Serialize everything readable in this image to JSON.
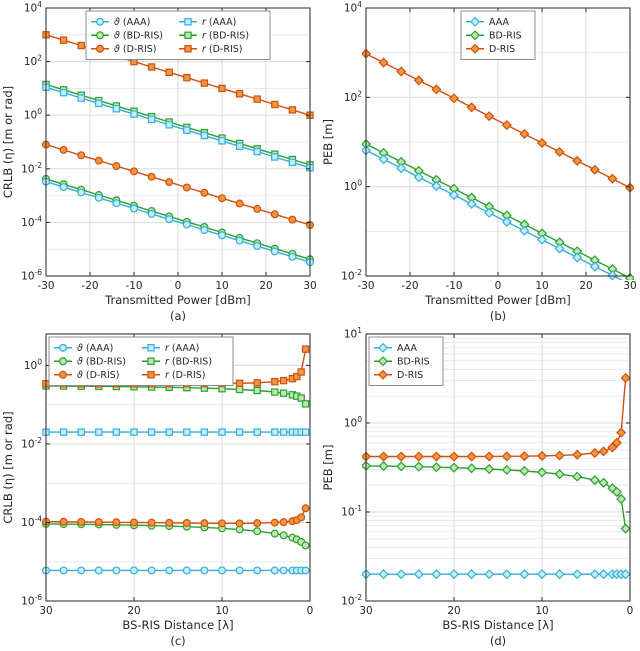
{
  "figure": {
    "background": "#ffffff",
    "palette": {
      "AAA": {
        "stroke": "#35aede",
        "fill": "#c6ecfa"
      },
      "BD-RIS": {
        "stroke": "#2aa12e",
        "fill": "#bfe6b2"
      },
      "D-RIS": {
        "stroke": "#d2500f",
        "fill": "#f0963f"
      }
    },
    "grid": {
      "major": "#dbdbdb",
      "minor": "#e9e9e9",
      "axis": "#262626",
      "text": "#262626",
      "legend_border": "#8c8c8c"
    }
  },
  "chart_data": [
    {
      "id": "a",
      "type": "line",
      "caption": "(a)",
      "xlabel": "Transmitted Power [dBm]",
      "ylabel": "CRLB (η) [m or rad]",
      "xlim": [
        -30,
        30
      ],
      "x_reversed": false,
      "xticks": [
        -30,
        -20,
        -10,
        0,
        10,
        20,
        30
      ],
      "ylog": true,
      "ylim_exp": [
        -6,
        4
      ],
      "ytick_exps": [
        -6,
        -4,
        -2,
        0,
        2,
        4
      ],
      "legend": {
        "position": "top-center",
        "columns": 2,
        "order": [
          "ϑ (AAA)",
          "ϑ (BD-RIS)",
          "ϑ (D-RIS)",
          "r (AAA)",
          "r (BD-RIS)",
          "r (D-RIS)"
        ]
      },
      "x": [
        -30,
        -26,
        -22,
        -18,
        -14,
        -10,
        -6,
        -2,
        2,
        6,
        10,
        14,
        18,
        22,
        26,
        30
      ],
      "series": [
        {
          "name": "ϑ (BD-RIS)",
          "color": "BD-RIS",
          "marker": "circle",
          "values": [
            0.0042,
            0.00265,
            0.00167,
            0.00105,
            0.00067,
            0.00042,
            0.000265,
            0.000167,
            0.000105,
            6.7e-05,
            4.2e-05,
            2.65e-05,
            1.67e-05,
            1.05e-05,
            6.7e-06,
            4.2e-06
          ]
        },
        {
          "name": "ϑ (AAA)",
          "color": "AAA",
          "marker": "circle",
          "values": [
            0.0033,
            0.00208,
            0.00131,
            0.00083,
            0.00052,
            0.00033,
            0.000208,
            0.000131,
            8.3e-05,
            5.2e-05,
            3.3e-05,
            2.08e-05,
            1.31e-05,
            8.3e-06,
            5.2e-06,
            3.3e-06
          ]
        },
        {
          "name": "ϑ (D-RIS)",
          "color": "D-RIS",
          "marker": "circle",
          "values": [
            0.08,
            0.0505,
            0.0319,
            0.0201,
            0.0127,
            0.008,
            0.00505,
            0.00319,
            0.00201,
            0.00127,
            0.0008,
            0.000505,
            0.000319,
            0.000201,
            0.000127,
            8e-05
          ]
        },
        {
          "name": "r (BD-RIS)",
          "color": "BD-RIS",
          "marker": "square",
          "values": [
            14,
            8.83,
            5.57,
            3.52,
            2.22,
            1.4,
            0.883,
            0.557,
            0.352,
            0.222,
            0.14,
            0.0883,
            0.0557,
            0.0352,
            0.0222,
            0.014
          ]
        },
        {
          "name": "r (AAA)",
          "color": "AAA",
          "marker": "square",
          "values": [
            11,
            6.94,
            4.38,
            2.76,
            1.74,
            1.1,
            0.694,
            0.438,
            0.276,
            0.174,
            0.11,
            0.0694,
            0.0438,
            0.0276,
            0.0174,
            0.011
          ]
        },
        {
          "name": "r (D-RIS)",
          "color": "D-RIS",
          "marker": "square",
          "values": [
            1000,
            631,
            398,
            251,
            158,
            100,
            63.1,
            39.8,
            25.1,
            15.8,
            10,
            6.31,
            3.98,
            2.51,
            1.58,
            1.0
          ]
        }
      ]
    },
    {
      "id": "b",
      "type": "line",
      "caption": "(b)",
      "xlabel": "Transmitted Power [dBm]",
      "ylabel": "PEB [m]",
      "xlim": [
        -30,
        30
      ],
      "x_reversed": false,
      "xticks": [
        -30,
        -20,
        -10,
        0,
        10,
        20,
        30
      ],
      "ylog": true,
      "ylim_exp": [
        -2,
        4
      ],
      "ytick_exps": [
        -2,
        0,
        2,
        4
      ],
      "legend": {
        "position": "top-center",
        "columns": 1,
        "order": [
          "AAA",
          "BD-RIS",
          "D-RIS"
        ]
      },
      "x": [
        -30,
        -26,
        -22,
        -18,
        -14,
        -10,
        -6,
        -2,
        2,
        6,
        10,
        14,
        18,
        22,
        26,
        30
      ],
      "series": [
        {
          "name": "BD-RIS",
          "color": "BD-RIS",
          "marker": "diamond",
          "values": [
            9.0,
            5.68,
            3.58,
            2.26,
            1.43,
            0.9,
            0.568,
            0.358,
            0.226,
            0.143,
            0.09,
            0.0568,
            0.0358,
            0.0226,
            0.0143,
            0.009
          ]
        },
        {
          "name": "AAA",
          "color": "AAA",
          "marker": "diamond",
          "values": [
            6.5,
            4.1,
            2.59,
            1.63,
            1.03,
            0.65,
            0.41,
            0.259,
            0.163,
            0.103,
            0.065,
            0.041,
            0.0259,
            0.0163,
            0.0103,
            0.0065
          ]
        },
        {
          "name": "D-RIS",
          "color": "D-RIS",
          "marker": "diamond",
          "values": [
            950,
            599,
            378,
            239,
            151,
            95,
            59.9,
            37.8,
            23.9,
            15.1,
            9.5,
            5.99,
            3.78,
            2.39,
            1.51,
            0.95
          ]
        }
      ]
    },
    {
      "id": "c",
      "type": "line",
      "caption": "(c)",
      "xlabel": "BS-RIS Distance [λ]",
      "ylabel": "CRLB (η) [m or rad]",
      "xlim": [
        0,
        30
      ],
      "x_reversed": true,
      "xticks": [
        30,
        20,
        10,
        0
      ],
      "ylog": true,
      "ylim_exp": [
        -6,
        0.8
      ],
      "ytick_exps": [
        -6,
        -4,
        -2,
        0
      ],
      "legend": {
        "position": "top-left",
        "columns": 2,
        "order": [
          "ϑ (AAA)",
          "ϑ (BD-RIS)",
          "ϑ (D-RIS)",
          "r (AAA)",
          "r (BD-RIS)",
          "r (D-RIS)"
        ]
      },
      "x": [
        30,
        28,
        26,
        24,
        22,
        20,
        18,
        16,
        14,
        12,
        10,
        8,
        6,
        4,
        3,
        2,
        1.5,
        1,
        0.5
      ],
      "series": [
        {
          "name": "ϑ (BD-RIS)",
          "color": "BD-RIS",
          "marker": "circle",
          "values": [
            9.2e-05,
            9.1e-05,
            9e-05,
            8.9e-05,
            8.7e-05,
            8.5e-05,
            8.3e-05,
            8.1e-05,
            7.8e-05,
            7.5e-05,
            7.1e-05,
            6.6e-05,
            6e-05,
            5.2e-05,
            4.7e-05,
            4.1e-05,
            3.7e-05,
            3.2e-05,
            2.6e-05
          ]
        },
        {
          "name": "ϑ (AAA)",
          "color": "AAA",
          "marker": "circle",
          "values": [
            6e-06,
            6e-06,
            6e-06,
            6e-06,
            6e-06,
            6e-06,
            6e-06,
            6e-06,
            6e-06,
            6e-06,
            6e-06,
            6e-06,
            6e-06,
            6e-06,
            6e-06,
            6e-06,
            6e-06,
            6e-06,
            6e-06
          ]
        },
        {
          "name": "ϑ (D-RIS)",
          "color": "D-RIS",
          "marker": "circle",
          "values": [
            0.000105,
            0.000104,
            0.000103,
            0.000102,
            0.000101,
            0.0001,
            9.9e-05,
            9.8e-05,
            9.7e-05,
            9.6e-05,
            9.5e-05,
            9.5e-05,
            9.6e-05,
            9.9e-05,
            0.000102,
            0.000108,
            0.000115,
            0.000135,
            0.00023
          ]
        },
        {
          "name": "r (BD-RIS)",
          "color": "BD-RIS",
          "marker": "square",
          "values": [
            0.3,
            0.298,
            0.296,
            0.293,
            0.29,
            0.286,
            0.282,
            0.277,
            0.271,
            0.264,
            0.255,
            0.244,
            0.23,
            0.21,
            0.196,
            0.178,
            0.165,
            0.147,
            0.105
          ]
        },
        {
          "name": "r (AAA)",
          "color": "AAA",
          "marker": "square",
          "values": [
            0.02,
            0.02,
            0.02,
            0.02,
            0.02,
            0.02,
            0.02,
            0.02,
            0.02,
            0.02,
            0.02,
            0.02,
            0.02,
            0.02,
            0.02,
            0.02,
            0.02,
            0.02,
            0.02
          ]
        },
        {
          "name": "r (D-RIS)",
          "color": "D-RIS",
          "marker": "square",
          "values": [
            0.34,
            0.34,
            0.34,
            0.34,
            0.34,
            0.34,
            0.34,
            0.34,
            0.341,
            0.343,
            0.346,
            0.35,
            0.36,
            0.385,
            0.41,
            0.46,
            0.52,
            0.68,
            2.6
          ]
        }
      ]
    },
    {
      "id": "d",
      "type": "line",
      "caption": "(d)",
      "xlabel": "BS-RIS Distance [λ]",
      "ylabel": "PEB [m]",
      "xlim": [
        0,
        30
      ],
      "x_reversed": true,
      "xticks": [
        30,
        20,
        10,
        0
      ],
      "ylog": true,
      "ylim_exp": [
        -2,
        1
      ],
      "ytick_exps": [
        -2,
        -1,
        0,
        1
      ],
      "legend": {
        "position": "top-left",
        "columns": 1,
        "order": [
          "AAA",
          "BD-RIS",
          "D-RIS"
        ]
      },
      "x": [
        30,
        28,
        26,
        24,
        22,
        20,
        18,
        16,
        14,
        12,
        10,
        8,
        6,
        4,
        3,
        2,
        1.5,
        1,
        0.5
      ],
      "series": [
        {
          "name": "BD-RIS",
          "color": "BD-RIS",
          "marker": "diamond",
          "values": [
            0.33,
            0.328,
            0.326,
            0.323,
            0.319,
            0.315,
            0.31,
            0.304,
            0.297,
            0.289,
            0.279,
            0.266,
            0.25,
            0.228,
            0.213,
            0.185,
            0.168,
            0.14,
            0.065
          ]
        },
        {
          "name": "AAA",
          "color": "AAA",
          "marker": "diamond",
          "values": [
            0.02,
            0.02,
            0.02,
            0.02,
            0.02,
            0.02,
            0.02,
            0.02,
            0.02,
            0.02,
            0.02,
            0.02,
            0.02,
            0.02,
            0.02,
            0.02,
            0.02,
            0.02,
            0.02
          ]
        },
        {
          "name": "D-RIS",
          "color": "D-RIS",
          "marker": "diamond",
          "values": [
            0.42,
            0.42,
            0.42,
            0.42,
            0.42,
            0.42,
            0.42,
            0.421,
            0.422,
            0.424,
            0.427,
            0.432,
            0.44,
            0.46,
            0.48,
            0.53,
            0.6,
            0.78,
            3.2
          ]
        }
      ]
    }
  ]
}
